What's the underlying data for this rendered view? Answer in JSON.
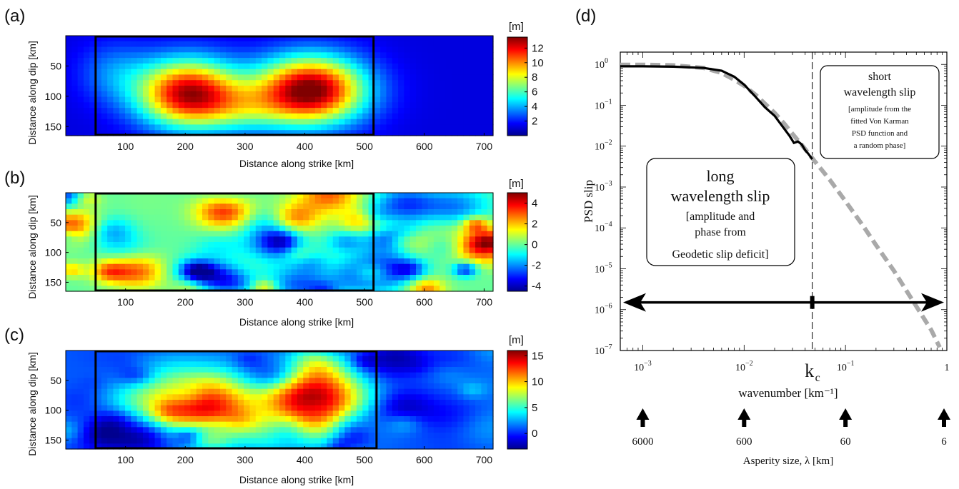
{
  "chart_data": [
    {
      "type": "heatmap",
      "panel": "(a)",
      "xlabel": "Distance along strike [km]",
      "ylabel": "Distance along dip [km]",
      "xlim": [
        0,
        715
      ],
      "ylim": [
        0,
        165
      ],
      "y_inverted": true,
      "xticks": [
        100,
        200,
        300,
        400,
        500,
        600,
        700
      ],
      "yticks": [
        50,
        100,
        150
      ],
      "colorbar": {
        "unit": "[m]",
        "ticks": [
          2,
          4,
          6,
          8,
          10,
          12
        ],
        "range": [
          0,
          13.5
        ]
      },
      "box_km": {
        "x": [
          50,
          515
        ],
        "y": [
          0,
          165
        ]
      },
      "field": {
        "base": 1.2,
        "blobs": [
          {
            "x": 205,
            "y": 95,
            "sx": 85,
            "sy": 55,
            "amp": 11.5
          },
          {
            "x": 410,
            "y": 90,
            "sx": 90,
            "sy": 55,
            "amp": 12.6
          },
          {
            "x": 300,
            "y": 120,
            "sx": 80,
            "sy": 40,
            "amp": 3
          },
          {
            "x": 80,
            "y": 60,
            "sx": 60,
            "sy": 50,
            "amp": 2
          }
        ],
        "noise": 0
      }
    },
    {
      "type": "heatmap",
      "panel": "(b)",
      "xlabel": "Distance along strike [km]",
      "ylabel": "Distance along dip [km]",
      "xlim": [
        0,
        715
      ],
      "ylim": [
        0,
        165
      ],
      "y_inverted": true,
      "xticks": [
        100,
        200,
        300,
        400,
        500,
        600,
        700
      ],
      "yticks": [
        50,
        100,
        150
      ],
      "colorbar": {
        "unit": "[m]",
        "ticks": [
          4,
          2,
          0,
          -2,
          -4
        ],
        "range": [
          -4.5,
          5
        ]
      },
      "box_km": {
        "x": [
          50,
          515
        ],
        "y": [
          0,
          165
        ]
      },
      "field": {
        "base": 0,
        "blobs": [],
        "noise": 1,
        "noise_amp": 3.2,
        "seed": 11
      }
    },
    {
      "type": "heatmap",
      "panel": "(c)",
      "xlabel": "Distance along strike [km]",
      "ylabel": "Distance along dip [km]",
      "xlim": [
        0,
        715
      ],
      "ylim": [
        0,
        165
      ],
      "y_inverted": true,
      "xticks": [
        100,
        200,
        300,
        400,
        500,
        600,
        700
      ],
      "yticks": [
        50,
        100,
        150
      ],
      "colorbar": {
        "unit": "[m]",
        "ticks": [
          15,
          10,
          5,
          0
        ],
        "range": [
          -3,
          16
        ]
      },
      "box_km": {
        "x": [
          50,
          520
        ],
        "y": [
          0,
          165
        ]
      },
      "field": {
        "base": 1.0,
        "blobs": [
          {
            "x": 225,
            "y": 95,
            "sx": 85,
            "sy": 50,
            "amp": 11
          },
          {
            "x": 420,
            "y": 90,
            "sx": 85,
            "sy": 55,
            "amp": 12
          },
          {
            "x": 300,
            "y": 80,
            "sx": 150,
            "sy": 60,
            "amp": 3
          }
        ],
        "noise": 1,
        "noise_amp": 2.6,
        "seed": 29
      }
    },
    {
      "type": "line",
      "panel": "(d)",
      "xlabel": "wavenumber [km⁻¹]",
      "ylabel": "PSD slip",
      "xscale": "log",
      "yscale": "log",
      "xlim": [
        0.0006,
        1
      ],
      "ylim": [
        1e-07,
        2
      ],
      "xtick_labels": [
        {
          "x": 0.001,
          "base": "10",
          "exp": "−3"
        },
        {
          "x": 0.01,
          "base": "10",
          "exp": "−2"
        },
        {
          "x": 0.1,
          "base": "10",
          "exp": "−1"
        },
        {
          "x": 1,
          "base": "1",
          "exp": ""
        }
      ],
      "ytick_labels": [
        {
          "y": 1,
          "exp": "0"
        },
        {
          "y": 0.1,
          "exp": "−1"
        },
        {
          "y": 0.01,
          "exp": "−2"
        },
        {
          "y": 0.001,
          "exp": "−3"
        },
        {
          "y": 0.0001,
          "exp": "−4"
        },
        {
          "y": 1e-05,
          "exp": "−5"
        },
        {
          "y": 1e-06,
          "exp": "−6"
        },
        {
          "y": 1e-07,
          "exp": "−7"
        }
      ],
      "kc": 0.047,
      "kc_label": "k",
      "kc_sub": "c",
      "series": [
        {
          "style": "solid-black",
          "x": [
            0.0006,
            0.001,
            0.002,
            0.004,
            0.006,
            0.008,
            0.01,
            0.013,
            0.016,
            0.02,
            0.024,
            0.028,
            0.031,
            0.034,
            0.037,
            0.04,
            0.043,
            0.047
          ],
          "y": [
            0.9,
            0.9,
            0.88,
            0.82,
            0.7,
            0.5,
            0.32,
            0.16,
            0.09,
            0.055,
            0.03,
            0.018,
            0.012,
            0.013,
            0.011,
            0.008,
            0.0065,
            0.0048
          ]
        },
        {
          "style": "dashed-gray",
          "x": [
            0.0006,
            0.001,
            0.002,
            0.004,
            0.006,
            0.008,
            0.01,
            0.013,
            0.016,
            0.02,
            0.025,
            0.03,
            0.04,
            0.05,
            0.07,
            0.1,
            0.15,
            0.2,
            0.3,
            0.5,
            0.7,
            0.85
          ],
          "y": [
            0.98,
            0.98,
            0.95,
            0.82,
            0.62,
            0.42,
            0.3,
            0.18,
            0.11,
            0.065,
            0.035,
            0.02,
            0.0085,
            0.0042,
            0.0015,
            0.00045,
            0.00011,
            3.8e-05,
            9e-06,
            1.2e-06,
            3.2e-07,
            1.2e-07
          ]
        }
      ],
      "arrow_row_value": 1.5e-06,
      "boxes": {
        "long": {
          "line1": "long",
          "line2": "wavelength slip",
          "line3": "[amplitude and",
          "line4": "phase from",
          "line5": "Geodetic slip deficit]"
        },
        "short": {
          "line1": "short",
          "line2": "wavelength slip",
          "line3": "[amplitude from the",
          "line4": "fitted Von Karman",
          "line5": "PSD function and",
          "line6": "a random phase]"
        }
      },
      "asperity": {
        "label": "Asperity size, λ [km]",
        "ticks": [
          {
            "k": 0.001,
            "label": "6000"
          },
          {
            "k": 0.01,
            "label": "600"
          },
          {
            "k": 0.1,
            "label": "60"
          },
          {
            "k": 1,
            "label": "6"
          }
        ]
      }
    }
  ]
}
